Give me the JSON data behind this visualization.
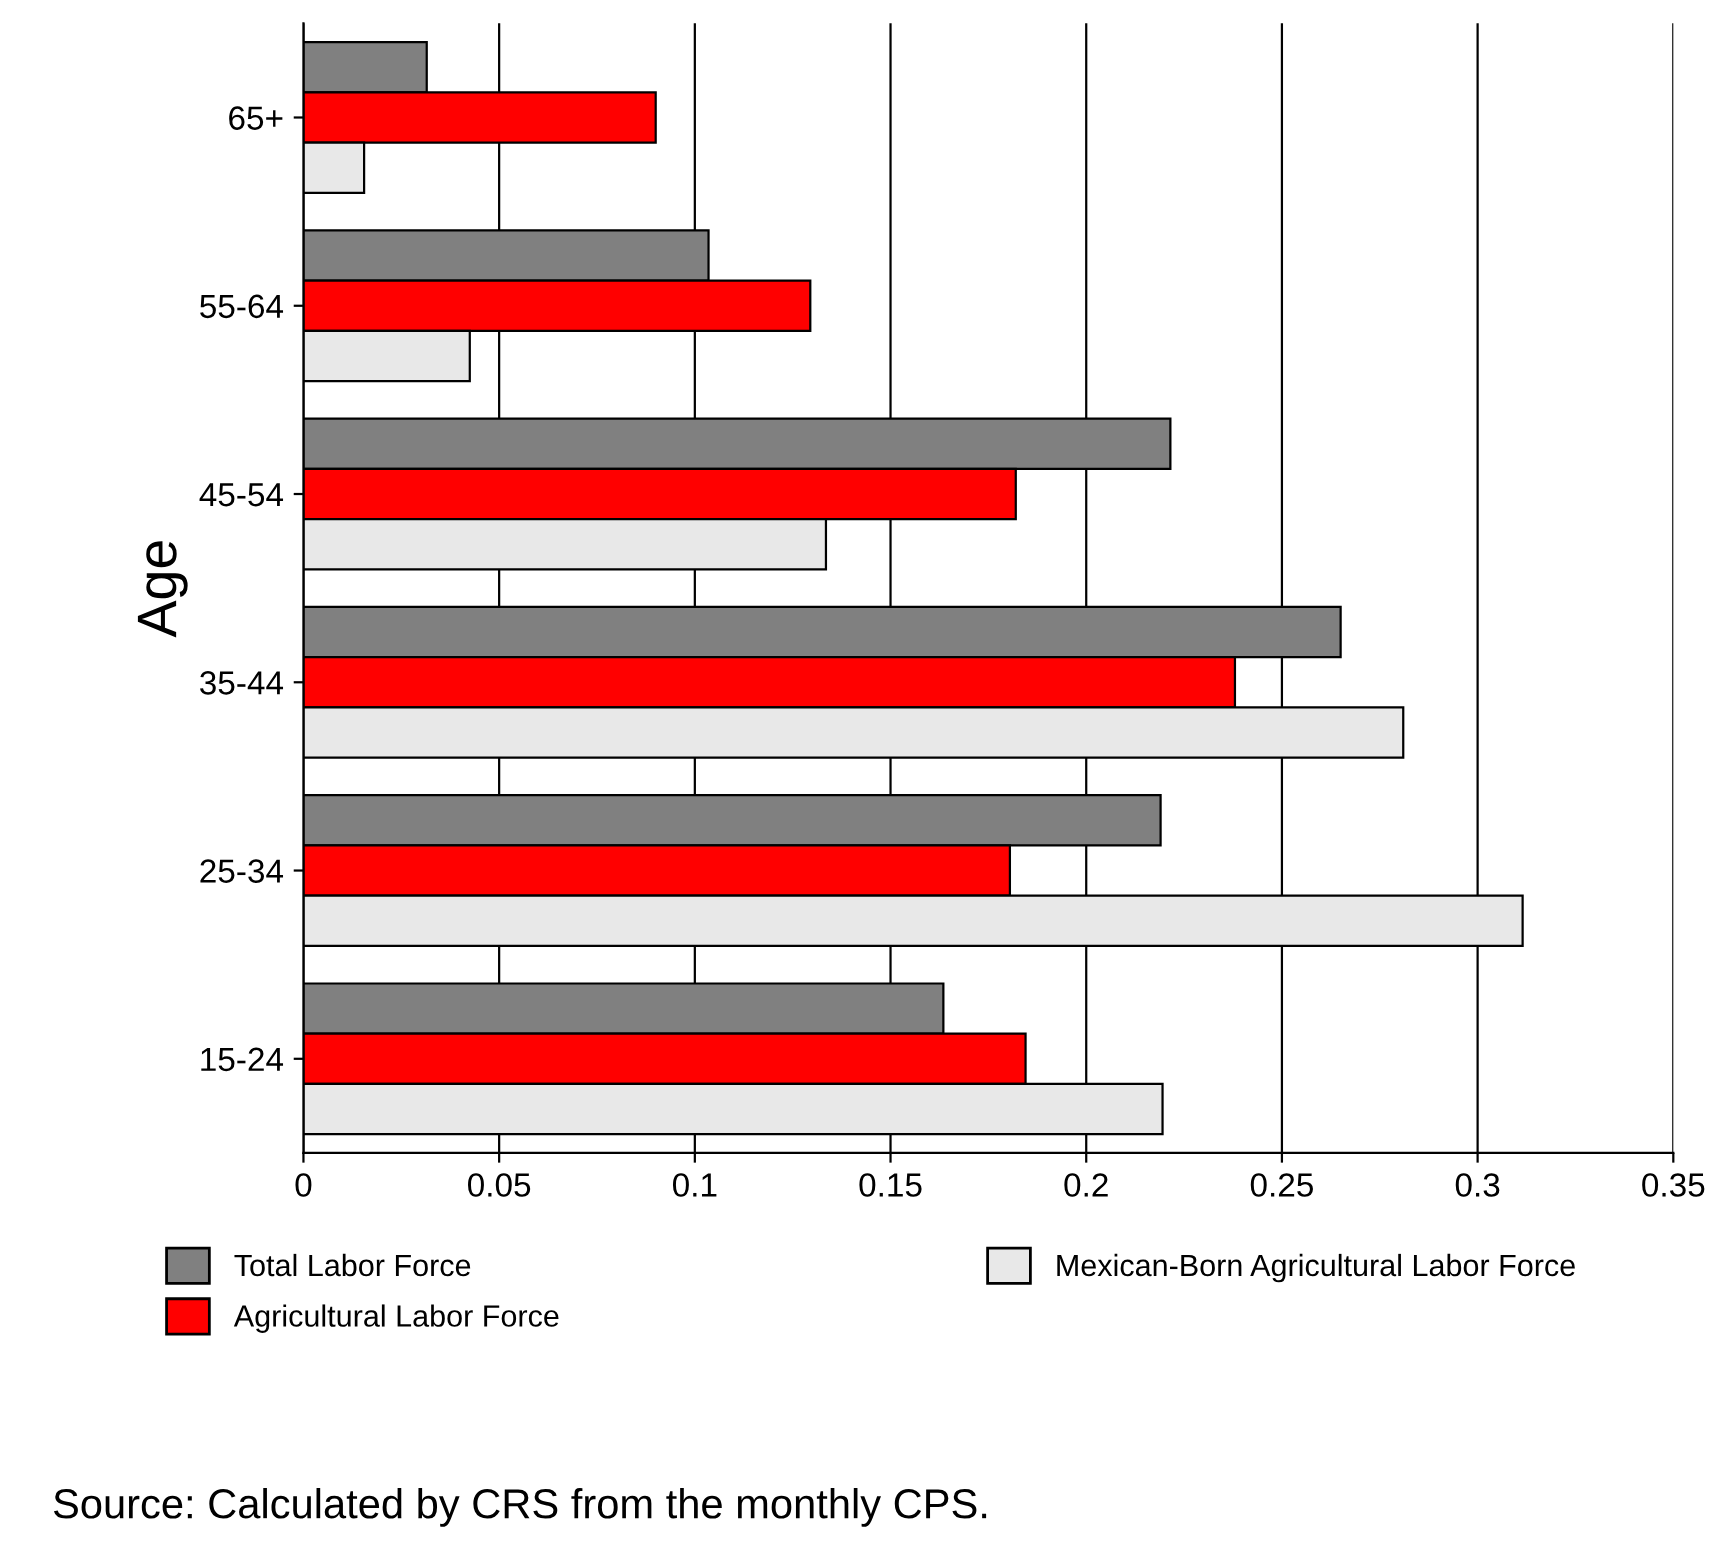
{
  "chart_data": {
    "type": "bar",
    "orientation": "horizontal",
    "ylabel": "Age",
    "categories": [
      "65+",
      "55-64",
      "45-54",
      "35-44",
      "25-34",
      "15-24"
    ],
    "series": [
      {
        "name": "Total Labor Force",
        "color": "#808080",
        "values": [
          0.0315,
          0.1035,
          0.2215,
          0.265,
          0.219,
          0.1635
        ]
      },
      {
        "name": "Agricultural Labor Force",
        "color": "#ff0000",
        "values": [
          0.09,
          0.1295,
          0.182,
          0.238,
          0.1805,
          0.1845
        ]
      },
      {
        "name": "Mexican-Born Agricultural Labor Force",
        "color": "#e8e8e8",
        "values": [
          0.0155,
          0.0425,
          0.1335,
          0.281,
          0.3115,
          0.2195
        ]
      }
    ],
    "xlim": [
      0,
      0.35
    ],
    "xticks": [
      0,
      0.05,
      0.1,
      0.15,
      0.2,
      0.25,
      0.3,
      0.35
    ],
    "grid": "x",
    "legend": "bottom",
    "annotations": [
      "Source: Calculated by CRS from the monthly CPS."
    ]
  }
}
